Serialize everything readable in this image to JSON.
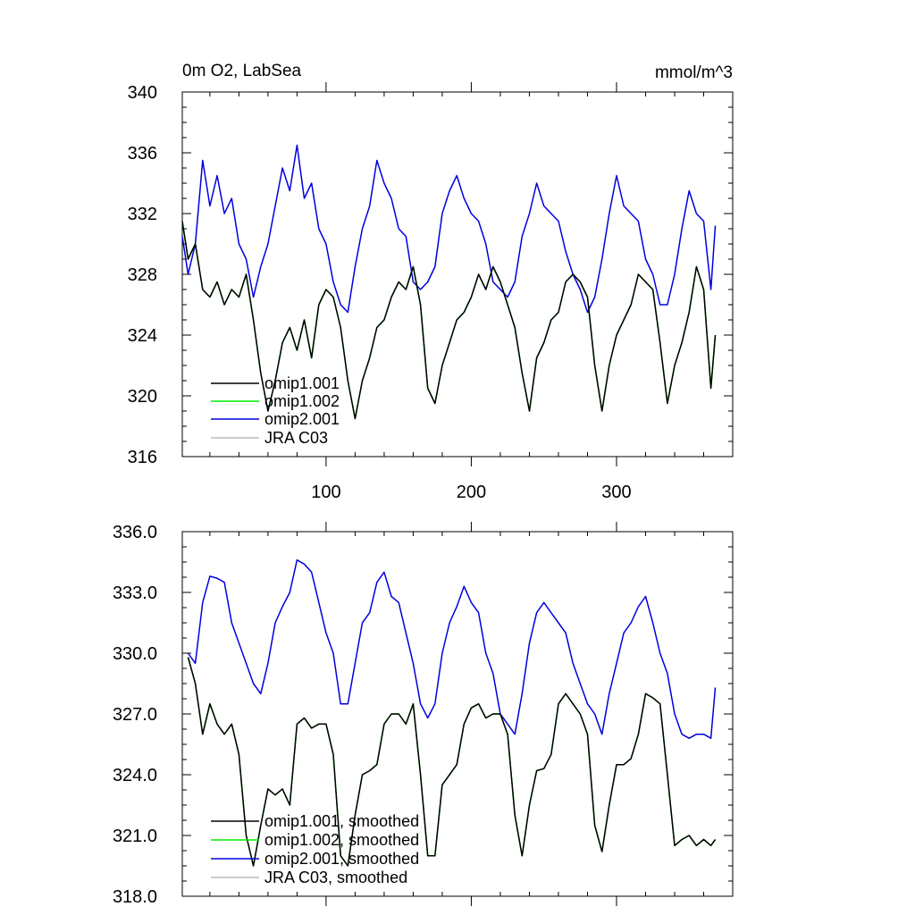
{
  "chart_data": [
    {
      "type": "line",
      "title": "0m O2, LabSea",
      "units": "mmol/m^3",
      "xlim": [
        1,
        380
      ],
      "ylim": [
        316,
        340
      ],
      "xticks": [
        100,
        200,
        300
      ],
      "yticks": [
        316,
        320,
        324,
        328,
        332,
        336,
        340
      ],
      "ytick_labels": [
        "316",
        "320",
        "324",
        "328",
        "332",
        "336",
        "340"
      ],
      "legend": [
        {
          "name": "omip1.001",
          "color": "#000000"
        },
        {
          "name": "omip1.002",
          "color": "#00ee00"
        },
        {
          "name": "omip2.001",
          "color": "#0000dd"
        },
        {
          "name": "JRA C03",
          "color": "#bbbbbb"
        }
      ],
      "series": [
        {
          "name": "omip2.001",
          "color": "#0000dd",
          "x": [
            1,
            5,
            10,
            15,
            20,
            25,
            30,
            35,
            40,
            45,
            50,
            55,
            60,
            65,
            70,
            75,
            80,
            85,
            90,
            95,
            100,
            105,
            110,
            115,
            120,
            125,
            130,
            135,
            140,
            145,
            150,
            155,
            160,
            165,
            170,
            175,
            180,
            185,
            190,
            195,
            200,
            205,
            210,
            215,
            220,
            225,
            230,
            235,
            240,
            245,
            250,
            255,
            260,
            265,
            270,
            275,
            280,
            285,
            290,
            295,
            300,
            305,
            310,
            315,
            320,
            325,
            330,
            335,
            340,
            345,
            350,
            355,
            360,
            365,
            368
          ],
          "y": [
            330.5,
            328.0,
            330.0,
            335.5,
            332.5,
            334.5,
            332.0,
            333.0,
            330.0,
            329.0,
            326.5,
            328.5,
            330.0,
            332.5,
            335.0,
            333.5,
            336.5,
            333.0,
            334.0,
            331.0,
            330.0,
            327.5,
            326.0,
            325.5,
            328.5,
            331.0,
            332.5,
            335.5,
            334.0,
            333.0,
            331.0,
            330.5,
            327.5,
            327.0,
            327.5,
            328.5,
            332.0,
            333.5,
            334.5,
            333.0,
            332.0,
            331.5,
            330.0,
            327.5,
            327.0,
            326.5,
            327.5,
            330.5,
            332.0,
            334.0,
            332.5,
            332.0,
            331.5,
            329.5,
            328.0,
            327.0,
            325.5,
            326.5,
            329.0,
            332.0,
            334.5,
            332.5,
            332.0,
            331.5,
            329.0,
            328.0,
            326.0,
            326.0,
            328.0,
            331.0,
            333.5,
            332.0,
            331.5,
            327.0,
            331.2
          ]
        },
        {
          "name": "omip1.002",
          "color": "#00ee00",
          "x": [
            1,
            5,
            10,
            15,
            20,
            25,
            30,
            35,
            40,
            45,
            50,
            55,
            60,
            65,
            70,
            75,
            80,
            85,
            90,
            95,
            100,
            105,
            110,
            115,
            120,
            125,
            130,
            135,
            140,
            145,
            150,
            155,
            160,
            165,
            170,
            175,
            180,
            185,
            190,
            195,
            200,
            205,
            210,
            215,
            220,
            225,
            230,
            235,
            240,
            245,
            250,
            255,
            260,
            265,
            270,
            275,
            280,
            285,
            290,
            295,
            300,
            305,
            310,
            315,
            320,
            325,
            330,
            335,
            340,
            345,
            350,
            355,
            360,
            365,
            368
          ],
          "y": [
            331.5,
            329.0,
            330.0,
            327.0,
            326.5,
            327.5,
            326.0,
            327.0,
            326.5,
            328.0,
            325.0,
            321.5,
            319.0,
            321.0,
            323.5,
            324.5,
            323.0,
            325.0,
            322.5,
            326.0,
            327.0,
            326.5,
            324.5,
            321.0,
            318.5,
            321.0,
            322.5,
            324.5,
            325.0,
            326.5,
            327.5,
            327.0,
            328.5,
            326.0,
            320.5,
            319.5,
            322.0,
            323.5,
            325.0,
            325.5,
            326.5,
            328.0,
            327.0,
            328.5,
            327.5,
            326.0,
            324.5,
            321.5,
            319.0,
            322.5,
            323.5,
            325.0,
            325.5,
            327.5,
            328.0,
            327.5,
            326.5,
            322.0,
            319.0,
            322.0,
            324.0,
            325.0,
            326.0,
            328.0,
            327.5,
            327.0,
            323.5,
            319.5,
            322.0,
            323.5,
            325.5,
            328.5,
            327.0,
            320.5,
            324.0
          ]
        },
        {
          "name": "omip1.001",
          "color": "#000000",
          "x": [
            1,
            5,
            10,
            15,
            20,
            25,
            30,
            35,
            40,
            45,
            50,
            55,
            60,
            65,
            70,
            75,
            80,
            85,
            90,
            95,
            100,
            105,
            110,
            115,
            120,
            125,
            130,
            135,
            140,
            145,
            150,
            155,
            160,
            165,
            170,
            175,
            180,
            185,
            190,
            195,
            200,
            205,
            210,
            215,
            220,
            225,
            230,
            235,
            240,
            245,
            250,
            255,
            260,
            265,
            270,
            275,
            280,
            285,
            290,
            295,
            300,
            305,
            310,
            315,
            320,
            325,
            330,
            335,
            340,
            345,
            350,
            355,
            360,
            365,
            368
          ],
          "y": [
            331.5,
            329.0,
            330.0,
            327.0,
            326.5,
            327.5,
            326.0,
            327.0,
            326.5,
            328.0,
            325.0,
            321.5,
            319.0,
            321.0,
            323.5,
            324.5,
            323.0,
            325.0,
            322.5,
            326.0,
            327.0,
            326.5,
            324.5,
            321.0,
            318.5,
            321.0,
            322.5,
            324.5,
            325.0,
            326.5,
            327.5,
            327.0,
            328.5,
            326.0,
            320.5,
            319.5,
            322.0,
            323.5,
            325.0,
            325.5,
            326.5,
            328.0,
            327.0,
            328.5,
            327.5,
            326.0,
            324.5,
            321.5,
            319.0,
            322.5,
            323.5,
            325.0,
            325.5,
            327.5,
            328.0,
            327.5,
            326.5,
            322.0,
            319.0,
            322.0,
            324.0,
            325.0,
            326.0,
            328.0,
            327.5,
            327.0,
            323.5,
            319.5,
            322.0,
            323.5,
            325.5,
            328.5,
            327.0,
            320.5,
            324.0
          ]
        }
      ]
    },
    {
      "type": "line",
      "title": "",
      "xlim": [
        1,
        380
      ],
      "ylim": [
        318,
        336
      ],
      "xticks": [
        100,
        200,
        300
      ],
      "yticks": [
        318,
        321,
        324,
        327,
        330,
        333,
        336
      ],
      "ytick_labels": [
        "318.0",
        "321.0",
        "324.0",
        "327.0",
        "330.0",
        "333.0",
        "336.0"
      ],
      "legend": [
        {
          "name": "omip1.001, smoothed",
          "color": "#000000"
        },
        {
          "name": "omip1.002, smoothed",
          "color": "#00ee00"
        },
        {
          "name": "omip2.001, smoothed",
          "color": "#0000dd"
        },
        {
          "name": "JRA C03, smoothed",
          "color": "#bbbbbb"
        }
      ],
      "series": [
        {
          "name": "omip2.001, smoothed",
          "color": "#0000dd",
          "x": [
            5,
            10,
            15,
            20,
            25,
            30,
            35,
            40,
            45,
            50,
            55,
            60,
            65,
            70,
            75,
            80,
            85,
            90,
            95,
            100,
            105,
            110,
            115,
            120,
            125,
            130,
            135,
            140,
            145,
            150,
            155,
            160,
            165,
            170,
            175,
            180,
            185,
            190,
            195,
            200,
            205,
            210,
            215,
            220,
            225,
            230,
            235,
            240,
            245,
            250,
            255,
            260,
            265,
            270,
            275,
            280,
            285,
            290,
            295,
            300,
            305,
            310,
            315,
            320,
            325,
            330,
            335,
            340,
            345,
            350,
            355,
            360,
            365,
            368
          ],
          "y": [
            330.0,
            329.5,
            332.5,
            333.8,
            333.7,
            333.5,
            331.5,
            330.5,
            329.5,
            328.5,
            328.0,
            329.5,
            331.5,
            332.3,
            333.0,
            334.6,
            334.4,
            334.0,
            332.5,
            331.0,
            330.0,
            327.5,
            327.5,
            329.5,
            331.5,
            332.0,
            333.5,
            334.0,
            332.8,
            332.5,
            331.0,
            329.5,
            327.5,
            326.8,
            327.5,
            330.0,
            331.5,
            332.3,
            333.3,
            332.5,
            332.0,
            330.0,
            329.0,
            327.0,
            326.5,
            326.0,
            328.0,
            330.5,
            332.0,
            332.5,
            332.0,
            331.5,
            331.0,
            329.5,
            328.5,
            327.5,
            327.0,
            326.0,
            328.0,
            329.5,
            331.0,
            331.5,
            332.3,
            332.8,
            331.5,
            330.0,
            329.0,
            327.0,
            326.0,
            325.8,
            326.0,
            326.0,
            325.8,
            328.3
          ]
        },
        {
          "name": "omip1.002, smoothed",
          "color": "#00ee00",
          "x": [
            5,
            10,
            15,
            20,
            25,
            30,
            35,
            40,
            45,
            50,
            55,
            60,
            65,
            70,
            75,
            80,
            85,
            90,
            95,
            100,
            105,
            110,
            115,
            120,
            125,
            130,
            135,
            140,
            145,
            150,
            155,
            160,
            165,
            170,
            175,
            180,
            185,
            190,
            195,
            200,
            205,
            210,
            215,
            220,
            225,
            230,
            235,
            240,
            245,
            250,
            255,
            260,
            265,
            270,
            275,
            280,
            285,
            290,
            295,
            300,
            305,
            310,
            315,
            320,
            325,
            330,
            335,
            340,
            345,
            350,
            355,
            360,
            365,
            368
          ],
          "y": [
            329.8,
            328.5,
            326.0,
            327.5,
            326.5,
            326.0,
            326.5,
            325.0,
            321.0,
            319.5,
            321.5,
            323.3,
            323.0,
            323.3,
            322.5,
            326.5,
            326.8,
            326.3,
            326.5,
            326.5,
            325.0,
            320.0,
            319.5,
            322.0,
            324.0,
            324.2,
            324.5,
            326.5,
            327.0,
            327.0,
            326.5,
            327.5,
            324.0,
            320.0,
            320.0,
            323.5,
            324.0,
            324.5,
            326.5,
            327.3,
            327.5,
            326.8,
            327.0,
            327.0,
            326.0,
            322.0,
            320.0,
            322.5,
            324.2,
            324.3,
            325.0,
            327.5,
            328.0,
            327.5,
            327.0,
            326.0,
            321.5,
            320.2,
            322.5,
            324.5,
            324.5,
            324.8,
            326.0,
            328.0,
            327.8,
            327.5,
            324.0,
            320.5,
            320.8,
            321.0,
            320.5,
            320.8,
            320.5,
            320.8
          ]
        },
        {
          "name": "omip1.001, smoothed",
          "color": "#000000",
          "x": [
            5,
            10,
            15,
            20,
            25,
            30,
            35,
            40,
            45,
            50,
            55,
            60,
            65,
            70,
            75,
            80,
            85,
            90,
            95,
            100,
            105,
            110,
            115,
            120,
            125,
            130,
            135,
            140,
            145,
            150,
            155,
            160,
            165,
            170,
            175,
            180,
            185,
            190,
            195,
            200,
            205,
            210,
            215,
            220,
            225,
            230,
            235,
            240,
            245,
            250,
            255,
            260,
            265,
            270,
            275,
            280,
            285,
            290,
            295,
            300,
            305,
            310,
            315,
            320,
            325,
            330,
            335,
            340,
            345,
            350,
            355,
            360,
            365,
            368
          ],
          "y": [
            329.8,
            328.5,
            326.0,
            327.5,
            326.5,
            326.0,
            326.5,
            325.0,
            321.0,
            319.5,
            321.5,
            323.3,
            323.0,
            323.3,
            322.5,
            326.5,
            326.8,
            326.3,
            326.5,
            326.5,
            325.0,
            320.0,
            319.5,
            322.0,
            324.0,
            324.2,
            324.5,
            326.5,
            327.0,
            327.0,
            326.5,
            327.5,
            324.0,
            320.0,
            320.0,
            323.5,
            324.0,
            324.5,
            326.5,
            327.3,
            327.5,
            326.8,
            327.0,
            327.0,
            326.0,
            322.0,
            320.0,
            322.5,
            324.2,
            324.3,
            325.0,
            327.5,
            328.0,
            327.5,
            327.0,
            326.0,
            321.5,
            320.2,
            322.5,
            324.5,
            324.5,
            324.8,
            326.0,
            328.0,
            327.8,
            327.5,
            324.0,
            320.5,
            320.8,
            321.0,
            320.5,
            320.8,
            320.5,
            320.8
          ]
        }
      ]
    }
  ]
}
